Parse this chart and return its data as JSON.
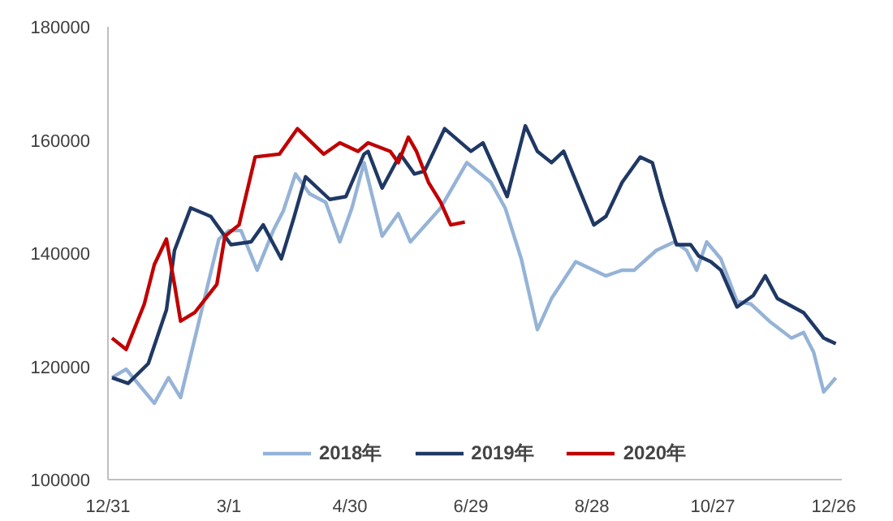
{
  "chart_data": {
    "type": "line",
    "xlim": [
      "2018-12-31",
      "2019-12-30"
    ],
    "ylim": [
      100000,
      180000
    ],
    "xticks": [
      {
        "value": "2018-12-31",
        "label": "12/31"
      },
      {
        "value": "2019-03-01",
        "label": "3/1"
      },
      {
        "value": "2019-04-30",
        "label": "4/30"
      },
      {
        "value": "2019-06-29",
        "label": "6/29"
      },
      {
        "value": "2019-08-28",
        "label": "8/28"
      },
      {
        "value": "2019-10-27",
        "label": "10/27"
      },
      {
        "value": "2019-12-26",
        "label": "12/26"
      }
    ],
    "yticks": [
      100000,
      120000,
      140000,
      160000,
      180000
    ],
    "legend": "bottom",
    "line_style": "solid",
    "series": [
      {
        "name": "2018年",
        "color": "#95b3d7",
        "x": [
          "2019-01-02",
          "2019-01-09",
          "2019-01-23",
          "2019-01-30",
          "2019-02-05",
          "2019-02-24",
          "2019-03-01",
          "2019-03-07",
          "2019-03-15",
          "2019-03-23",
          "2019-03-28",
          "2019-04-03",
          "2019-04-10",
          "2019-04-18",
          "2019-04-25",
          "2019-05-01",
          "2019-05-07",
          "2019-05-16",
          "2019-05-24",
          "2019-05-30",
          "2019-06-14",
          "2019-06-27",
          "2019-07-09",
          "2019-07-16",
          "2019-07-24",
          "2019-08-01",
          "2019-08-08",
          "2019-08-20",
          "2019-09-04",
          "2019-09-12",
          "2019-09-18",
          "2019-09-29",
          "2019-10-08",
          "2019-10-14",
          "2019-10-19",
          "2019-10-24",
          "2019-10-31",
          "2019-11-08",
          "2019-11-15",
          "2019-11-24",
          "2019-12-05",
          "2019-12-11",
          "2019-12-16",
          "2019-12-21",
          "2019-12-27"
        ],
        "values": [
          118000,
          119500,
          113500,
          118000,
          114500,
          142500,
          144000,
          144000,
          137000,
          144000,
          147500,
          154000,
          150500,
          149000,
          142000,
          148000,
          156000,
          143000,
          147000,
          142000,
          148000,
          156000,
          152500,
          148000,
          139000,
          126500,
          132000,
          138500,
          136000,
          137000,
          137000,
          140500,
          142000,
          140500,
          137000,
          142000,
          139000,
          131500,
          131000,
          128000,
          125000,
          126000,
          122500,
          115500,
          118000
        ]
      },
      {
        "name": "2019年",
        "color": "#1f3864",
        "x": [
          "2019-01-02",
          "2019-01-10",
          "2019-01-20",
          "2019-01-29",
          "2019-02-02",
          "2019-02-10",
          "2019-02-20",
          "2019-02-25",
          "2019-03-02",
          "2019-03-12",
          "2019-03-18",
          "2019-03-27",
          "2019-04-02",
          "2019-04-08",
          "2019-04-20",
          "2019-04-28",
          "2019-05-07",
          "2019-05-09",
          "2019-05-16",
          "2019-05-25",
          "2019-06-01",
          "2019-06-06",
          "2019-06-16",
          "2019-06-29",
          "2019-07-05",
          "2019-07-17",
          "2019-07-26",
          "2019-08-01",
          "2019-08-08",
          "2019-08-14",
          "2019-08-29",
          "2019-09-04",
          "2019-09-12",
          "2019-09-21",
          "2019-09-27",
          "2019-10-02",
          "2019-10-09",
          "2019-10-16",
          "2019-10-20",
          "2019-10-26",
          "2019-10-31",
          "2019-11-08",
          "2019-11-16",
          "2019-11-22",
          "2019-11-28",
          "2019-12-11",
          "2019-12-21",
          "2019-12-27"
        ],
        "values": [
          118000,
          117000,
          120500,
          130000,
          140500,
          148000,
          146500,
          144000,
          141500,
          142000,
          145000,
          139000,
          146000,
          153500,
          149500,
          150000,
          157500,
          158000,
          151500,
          157500,
          154000,
          154500,
          162000,
          158000,
          159500,
          150000,
          162500,
          158000,
          156000,
          158000,
          145000,
          146500,
          152500,
          157000,
          156000,
          149500,
          141500,
          141500,
          139500,
          138500,
          137000,
          130500,
          132500,
          136000,
          132000,
          129500,
          125000,
          124000
        ]
      },
      {
        "name": "2020年",
        "color": "#c00000",
        "x": [
          "2019-01-02",
          "2019-01-09",
          "2019-01-18",
          "2019-01-23",
          "2019-01-29",
          "2019-02-02",
          "2019-02-05",
          "2019-02-12",
          "2019-02-23",
          "2019-02-27",
          "2019-03-06",
          "2019-03-14",
          "2019-03-26",
          "2019-04-04",
          "2019-04-17",
          "2019-04-25",
          "2019-05-04",
          "2019-05-09",
          "2019-05-20",
          "2019-05-24",
          "2019-05-29",
          "2019-06-02",
          "2019-06-08",
          "2019-06-14",
          "2019-06-19",
          "2019-06-26"
        ],
        "values": [
          125000,
          123000,
          131000,
          138000,
          142500,
          134500,
          128000,
          129500,
          134500,
          143000,
          145000,
          157000,
          157500,
          162000,
          157500,
          159500,
          158000,
          159500,
          158000,
          156000,
          160500,
          158000,
          152500,
          149000,
          145000,
          145500
        ]
      }
    ]
  }
}
